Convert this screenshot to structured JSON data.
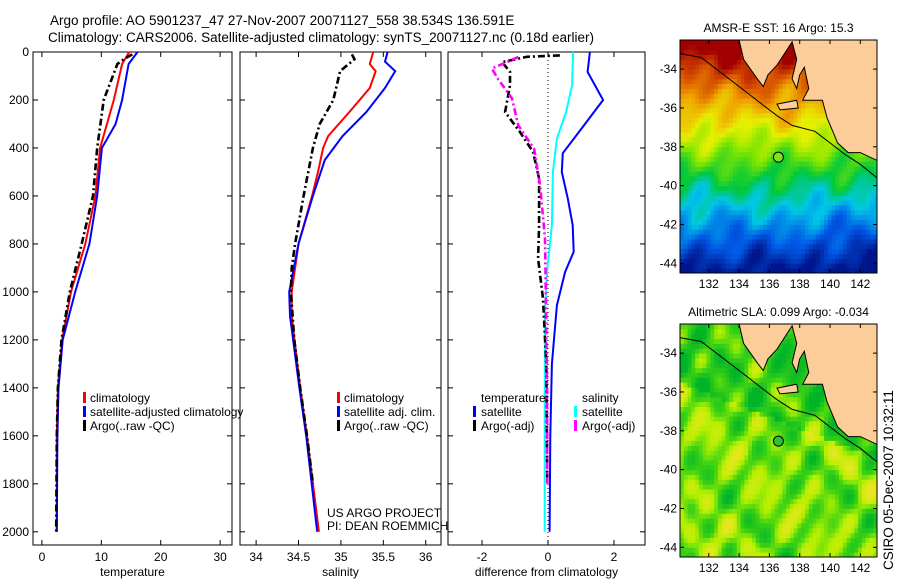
{
  "title": {
    "line1": "Argo profile: AO 5901237_47 27-Nov-2007 20071127_558 38.534S 136.591E",
    "line2": "Climatology: CARS2006. Satellite-adjusted climatology: synTS_20071127.nc (0.18d earlier)"
  },
  "credit": {
    "line1": "US ARGO PROJECT",
    "line2": "PI: DEAN ROEMMICH"
  },
  "side_label": "CSIRO 05-Dec-2007 10:32:11",
  "colors": {
    "climatology": "#ff0000",
    "satellite": "#0000ff",
    "argo": "#000000",
    "sal_satellite": "#00ffff",
    "sal_argo": "#ff00ff",
    "land": "#fccc99"
  },
  "chart_data": [
    {
      "type": "line",
      "id": "temperature",
      "xlabel": "temperature",
      "ylabel": "",
      "xlim": [
        -1.5,
        32
      ],
      "ylim": [
        2055,
        0
      ],
      "xticks": [
        0,
        10,
        20,
        30
      ],
      "yticks": [
        0,
        200,
        400,
        600,
        800,
        1000,
        1200,
        1400,
        1600,
        1800,
        2000
      ],
      "legend": [
        "climatology",
        "satellite-adjusted climatology",
        "Argo(..raw -QC)"
      ],
      "series": [
        {
          "name": "climatology",
          "color": "#ff0000",
          "dash": false,
          "depth": [
            0,
            50,
            200,
            400,
            600,
            800,
            1000,
            1200,
            1400,
            1600,
            2000
          ],
          "values": [
            14.7,
            13.5,
            12.1,
            9.8,
            9.0,
            7.3,
            4.9,
            3.4,
            2.7,
            2.5,
            2.5
          ]
        },
        {
          "name": "satellite-adjusted climatology",
          "color": "#0000ff",
          "dash": false,
          "depth": [
            0,
            50,
            200,
            300,
            400,
            600,
            800,
            1000,
            1200,
            1400,
            1600,
            2000
          ],
          "values": [
            16.1,
            14.6,
            13.5,
            12.4,
            10.1,
            9.3,
            8.0,
            5.6,
            3.5,
            2.8,
            2.6,
            2.5
          ]
        },
        {
          "name": "Argo(..raw -QC)",
          "color": "#000000",
          "dash": true,
          "depth": [
            10,
            30,
            50,
            200,
            400,
            600,
            800,
            1000,
            1200,
            1400,
            1600,
            2000
          ],
          "values": [
            15.2,
            13.8,
            12.7,
            10.4,
            9.3,
            8.6,
            6.7,
            4.7,
            3.3,
            2.7,
            2.5,
            2.4
          ]
        }
      ]
    },
    {
      "type": "line",
      "id": "salinity",
      "xlabel": "salinity",
      "xlim": [
        33.81,
        36.18
      ],
      "ylim": [
        2055,
        0
      ],
      "xticks": [
        34,
        34.5,
        35,
        35.5,
        36
      ],
      "xticklabels": [
        "34",
        "34.5",
        "35",
        "35.5",
        "36"
      ],
      "legend": [
        "climatology",
        "satellite adj. clim.",
        "Argo(..raw -QC)"
      ],
      "series": [
        {
          "name": "climatology",
          "color": "#ff0000",
          "dash": false,
          "depth": [
            0,
            50,
            80,
            150,
            250,
            350,
            400,
            500,
            600,
            800,
            1000,
            1100,
            1400,
            1600,
            2000
          ],
          "values": [
            35.38,
            35.34,
            35.41,
            35.34,
            35.1,
            34.85,
            34.79,
            34.73,
            34.66,
            34.5,
            34.42,
            34.42,
            34.52,
            34.6,
            34.74
          ]
        },
        {
          "name": "satellite adj. clim.",
          "color": "#0000ff",
          "dash": false,
          "depth": [
            0,
            40,
            80,
            150,
            250,
            350,
            450,
            600,
            800,
            1000,
            1100,
            1400,
            1600,
            2000
          ],
          "values": [
            35.55,
            35.52,
            35.64,
            35.52,
            35.3,
            35.02,
            34.81,
            34.67,
            34.5,
            34.39,
            34.4,
            34.51,
            34.59,
            34.72
          ]
        },
        {
          "name": "Argo(..raw -QC)",
          "color": "#000000",
          "dash": true,
          "depth": [
            10,
            30,
            80,
            200,
            300,
            400,
            600,
            800,
            900,
            1000,
            1200,
            1400,
            1600,
            1800
          ],
          "values": [
            35.13,
            35.16,
            34.99,
            34.91,
            34.75,
            34.67,
            34.56,
            34.46,
            34.42,
            34.41,
            34.45,
            34.52,
            34.6,
            34.67
          ]
        }
      ]
    },
    {
      "type": "line",
      "id": "difference",
      "xlabel": "difference from climatology",
      "xlim": [
        -3.03,
        2.94
      ],
      "ylim": [
        2055,
        0
      ],
      "xticks": [
        -2,
        0,
        2
      ],
      "legend_temperature": {
        "title": "temperature",
        "items": [
          "satellite",
          "Argo(-adj)"
        ]
      },
      "legend_salinity": {
        "title": "salinity",
        "items": [
          "satellite",
          "Argo(-adj)"
        ]
      },
      "series": [
        {
          "name": "temperature satellite",
          "color": "#0000ff",
          "dash": false,
          "depth": [
            0,
            83,
            200,
            311,
            422,
            500,
            611,
            722,
            833,
            917,
            1056,
            1300,
            1600,
            2000
          ],
          "values": [
            1.27,
            1.2,
            1.67,
            1.06,
            0.45,
            0.42,
            0.6,
            0.75,
            0.78,
            0.52,
            0.27,
            0.12,
            0.07,
            0.05
          ]
        },
        {
          "name": "salinity satellite",
          "color": "#00ffff",
          "dash": false,
          "depth": [
            0,
            139,
            250,
            361,
            500,
            722,
            917,
            1083,
            1500,
            2000
          ],
          "values": [
            0.76,
            0.73,
            0.55,
            0.27,
            0.15,
            0.12,
            -0.03,
            -0.09,
            -0.1,
            -0.1
          ]
        },
        {
          "name": "temperature Argo(-adj)",
          "color": "#000000",
          "dash": true,
          "depth": [
            14,
            20,
            42,
            83,
            139,
            250,
            333,
            417,
            528,
            722,
            861,
            1028,
            1300,
            1800
          ],
          "values": [
            0.36,
            -0.64,
            -1.39,
            -1.15,
            -1.15,
            -1.3,
            -0.85,
            -0.45,
            -0.27,
            -0.27,
            -0.3,
            -0.15,
            -0.05,
            -0.02
          ]
        },
        {
          "name": "salinity Argo(-adj)",
          "color": "#ff00ff",
          "dash": true,
          "depth": [
            21,
            69,
            111,
            194,
            306,
            403,
            556,
            778,
            1056,
            1400,
            1800
          ],
          "values": [
            -0.9,
            -1.7,
            -1.52,
            -1.09,
            -0.9,
            -0.42,
            -0.24,
            -0.09,
            -0.06,
            -0.03,
            -0.02
          ]
        }
      ]
    },
    {
      "type": "heatmap",
      "id": "sst-map",
      "title": "AMSR-E SST: 16 Argo: 15.3",
      "xlim": [
        130.1,
        143.1
      ],
      "ylim": [
        -44.5,
        -32.5
      ],
      "xticks": [
        132,
        134,
        136,
        138,
        140,
        142
      ],
      "yticks": [
        -34,
        -36,
        -38,
        -40,
        -42,
        -44
      ],
      "argo_position": [
        136.591,
        -38.534
      ]
    },
    {
      "type": "heatmap",
      "id": "sla-map",
      "title": "Altimetric SLA: 0.099 Argo: -0.034",
      "xlim": [
        130.1,
        143.1
      ],
      "ylim": [
        -44.5,
        -32.5
      ],
      "xticks": [
        132,
        134,
        136,
        138,
        140,
        142
      ],
      "yticks": [
        -34,
        -36,
        -38,
        -40,
        -42,
        -44
      ],
      "argo_position": [
        136.591,
        -38.534
      ]
    }
  ]
}
